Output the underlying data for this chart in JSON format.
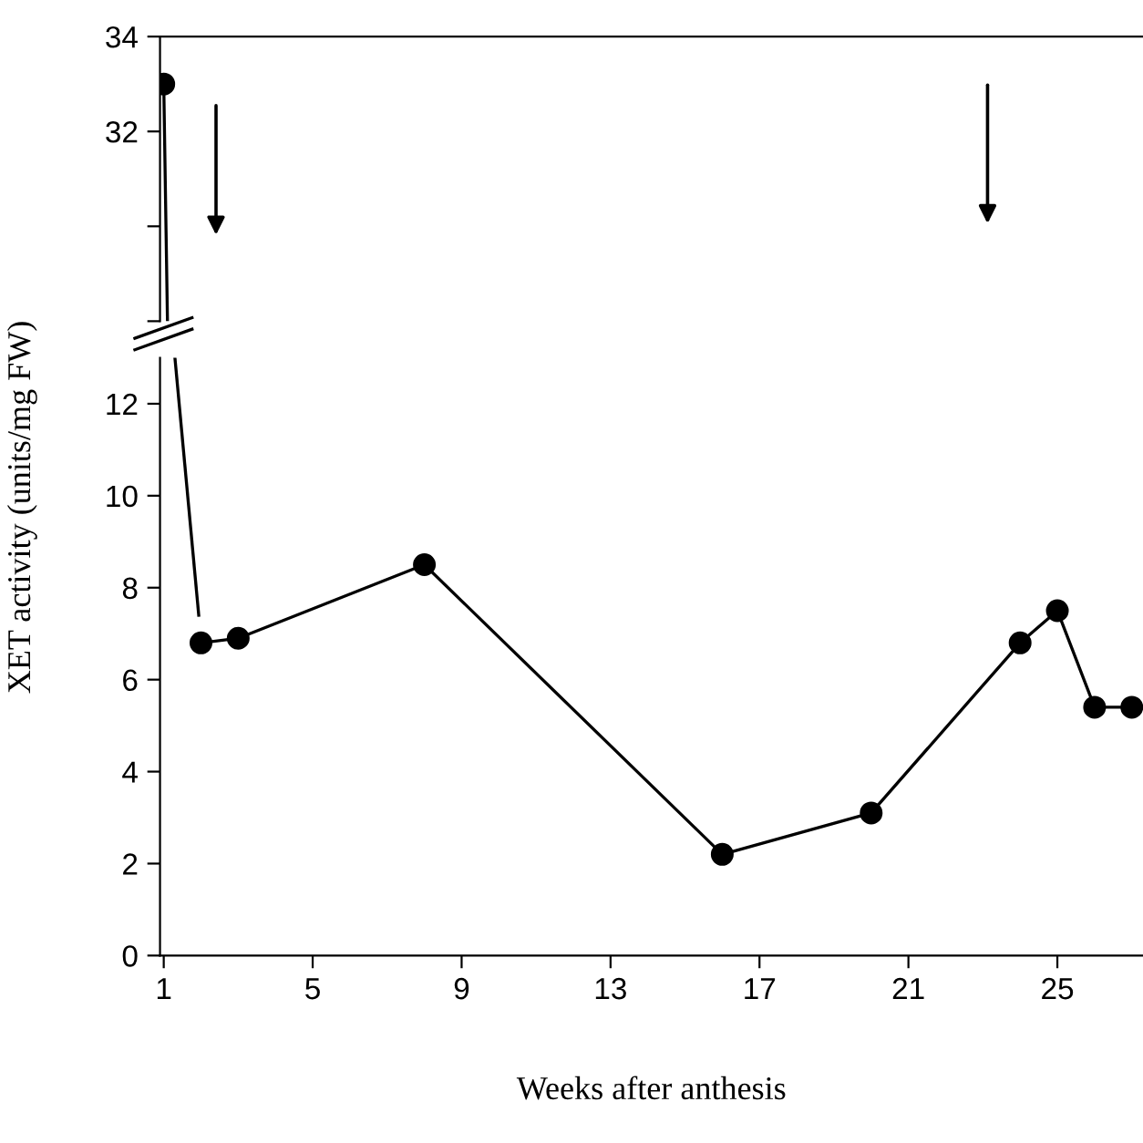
{
  "chart_data": [
    {
      "type": "line",
      "series": [
        {
          "x": [
            1,
            1.1
          ],
          "values": [
            33.0,
            28
          ],
          "color": "#000000",
          "marker": "none"
        },
        {
          "x": [
            1
          ],
          "values": [
            33.0
          ],
          "color": "#000000",
          "marker": "circle"
        }
      ],
      "line_style": "solid",
      "xlim": [
        0.9,
        27.3
      ],
      "ylim": [
        28,
        34
      ],
      "yticks": [
        {
          "value": 28,
          "label": null
        },
        {
          "value": 30,
          "label": null
        },
        32,
        34
      ],
      "tick_labels": "y"
    },
    {
      "type": "line",
      "series": [
        {
          "x": [
            1.3,
            1.94
          ],
          "values": [
            13,
            7.4
          ],
          "color": "#000000",
          "marker": "none"
        },
        {
          "x": [
            2,
            3,
            8,
            16,
            20,
            24,
            25,
            26,
            27
          ],
          "values": [
            6.8,
            6.9,
            8.5,
            2.2,
            3.1,
            6.8,
            7.5,
            5.4,
            5.4
          ],
          "color": "#000000",
          "marker": "circle"
        }
      ],
      "line_style": "solid",
      "xlim": [
        0.9,
        27.3
      ],
      "xticks": [
        1,
        5,
        9,
        13,
        17,
        21,
        25
      ],
      "ylim": [
        0,
        13
      ],
      "yticks": [
        0,
        2,
        4,
        6,
        8,
        10,
        12
      ],
      "xlabel": "Weeks after anthesis",
      "ylabel": "XET activity (units/mg FW)"
    }
  ]
}
